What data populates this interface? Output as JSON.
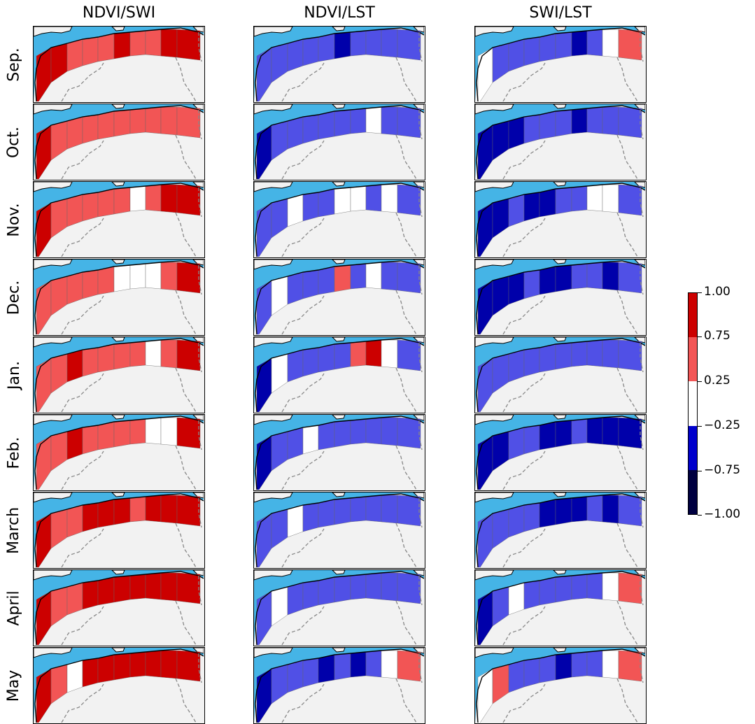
{
  "columns": [
    "NDVI/SWI",
    "NDVI/LST",
    "SWI/LST"
  ],
  "rows": [
    "Sep.",
    "Oct.",
    "Nov.",
    "Dec.",
    "Jan.",
    "Feb.",
    "March",
    "April",
    "May"
  ],
  "colors": {
    "sea": "#45b4e6",
    "land_background": "#f2f2f2",
    "strong_positive": "#cc0000",
    "positive": "#f25555",
    "neutral": "#ffffff",
    "negative": "#5050e6",
    "strong_negative": "#0000aa",
    "very_strong_negative": "#000040"
  },
  "colorbar": {
    "ticks": [
      "1.00",
      "0.75",
      "0.25",
      "−0.25",
      "−0.75",
      "−1.00"
    ],
    "bins": [
      {
        "from": 0.75,
        "to": 1.0,
        "color": "#cc0000"
      },
      {
        "from": 0.25,
        "to": 0.75,
        "color": "#f25555"
      },
      {
        "from": -0.25,
        "to": 0.25,
        "color": "#ffffff"
      },
      {
        "from": -0.75,
        "to": -0.25,
        "color": "#0000cc"
      },
      {
        "from": -1.0,
        "to": -0.75,
        "color": "#000040"
      }
    ]
  },
  "panel_classes": {
    "NDVI/SWI": [
      [
        "sp",
        "sp",
        "p",
        "p",
        "p",
        "sp",
        "p",
        "p",
        "sp",
        "sp"
      ],
      [
        "sp",
        "p",
        "p",
        "p",
        "p",
        "p",
        "p",
        "p",
        "p",
        "p"
      ],
      [
        "sp",
        "p",
        "p",
        "p",
        "p",
        "p",
        "n",
        "p",
        "sp",
        "sp"
      ],
      [
        "p",
        "p",
        "p",
        "p",
        "p",
        "n",
        "n",
        "n",
        "p",
        "sp"
      ],
      [
        "p",
        "p",
        "sp",
        "p",
        "p",
        "p",
        "p",
        "n",
        "p",
        "sp"
      ],
      [
        "p",
        "p",
        "sp",
        "p",
        "p",
        "p",
        "p",
        "n",
        "n",
        "sp"
      ],
      [
        "sp",
        "p",
        "p",
        "sp",
        "sp",
        "sp",
        "p",
        "sp",
        "sp",
        "sp"
      ],
      [
        "sp",
        "p",
        "p",
        "sp",
        "sp",
        "sp",
        "sp",
        "sp",
        "sp",
        "sp"
      ],
      [
        "sp",
        "p",
        "n",
        "sp",
        "sp",
        "sp",
        "sp",
        "sp",
        "sp",
        "sp"
      ]
    ],
    "NDVI/LST": [
      [
        "m",
        "m",
        "m",
        "m",
        "m",
        "sm",
        "m",
        "m",
        "m",
        "m"
      ],
      [
        "sm",
        "m",
        "m",
        "m",
        "m",
        "m",
        "m",
        "n",
        "m",
        "m"
      ],
      [
        "m",
        "m",
        "n",
        "m",
        "m",
        "n",
        "n",
        "m",
        "n",
        "m"
      ],
      [
        "m",
        "n",
        "m",
        "m",
        "m",
        "p",
        "m",
        "n",
        "m",
        "m"
      ],
      [
        "sm",
        "n",
        "m",
        "m",
        "m",
        "m",
        "p",
        "sp",
        "n",
        "m"
      ],
      [
        "sm",
        "m",
        "m",
        "n",
        "m",
        "m",
        "m",
        "m",
        "m",
        "m"
      ],
      [
        "m",
        "m",
        "n",
        "m",
        "m",
        "m",
        "m",
        "m",
        "m",
        "m"
      ],
      [
        "m",
        "n",
        "m",
        "m",
        "m",
        "m",
        "m",
        "m",
        "m",
        "m"
      ],
      [
        "sm",
        "m",
        "m",
        "m",
        "sm",
        "m",
        "sm",
        "m",
        "n",
        "p"
      ]
    ],
    "SWI/LST": [
      [
        "n",
        "m",
        "m",
        "m",
        "m",
        "m",
        "sm",
        "m",
        "n",
        "p"
      ],
      [
        "sm",
        "sm",
        "sm",
        "m",
        "m",
        "m",
        "sm",
        "m",
        "m",
        "m"
      ],
      [
        "sm",
        "sm",
        "m",
        "sm",
        "sm",
        "m",
        "m",
        "n",
        "n",
        "m"
      ],
      [
        "sm",
        "sm",
        "sm",
        "m",
        "sm",
        "sm",
        "m",
        "m",
        "sm",
        "m"
      ],
      [
        "m",
        "m",
        "m",
        "m",
        "m",
        "m",
        "m",
        "m",
        "m",
        "m"
      ],
      [
        "sm",
        "sm",
        "m",
        "m",
        "sm",
        "sm",
        "m",
        "sm",
        "sm",
        "sm"
      ],
      [
        "m",
        "m",
        "m",
        "m",
        "sm",
        "sm",
        "sm",
        "m",
        "sm",
        "m"
      ],
      [
        "sm",
        "m",
        "n",
        "m",
        "m",
        "m",
        "m",
        "m",
        "n",
        "p"
      ],
      [
        "n",
        "p",
        "m",
        "m",
        "m",
        "sm",
        "m",
        "m",
        "n",
        "p"
      ]
    ]
  }
}
